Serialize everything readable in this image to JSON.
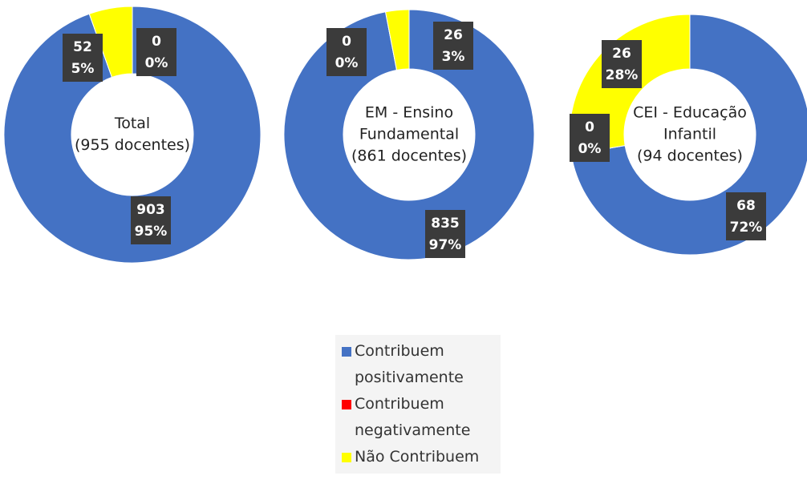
{
  "legend": [
    {
      "name": "Contribuem positivamente",
      "color": "#4472c4"
    },
    {
      "name": "Contribuem negativamente",
      "color": "#ff0000"
    },
    {
      "name": "Não Contribuem",
      "color": "#ffff00"
    }
  ],
  "chart_data": [
    {
      "type": "donut",
      "center_label": [
        "Total",
        "(955 docentes)"
      ],
      "values": [
        903,
        0,
        52
      ],
      "percent_labels": [
        "95%",
        "0%",
        "5%"
      ]
    },
    {
      "type": "donut",
      "center_label": [
        "EM - Ensino",
        "Fundamental",
        "(861 docentes)"
      ],
      "values": [
        835,
        0,
        26
      ],
      "percent_labels": [
        "97%",
        "0%",
        "3%"
      ]
    },
    {
      "type": "donut",
      "center_label": [
        "CEI - Educação",
        "Infantil",
        "(94 docentes)"
      ],
      "values": [
        68,
        0,
        26
      ],
      "percent_labels": [
        "72%",
        "0%",
        "28%"
      ]
    }
  ]
}
